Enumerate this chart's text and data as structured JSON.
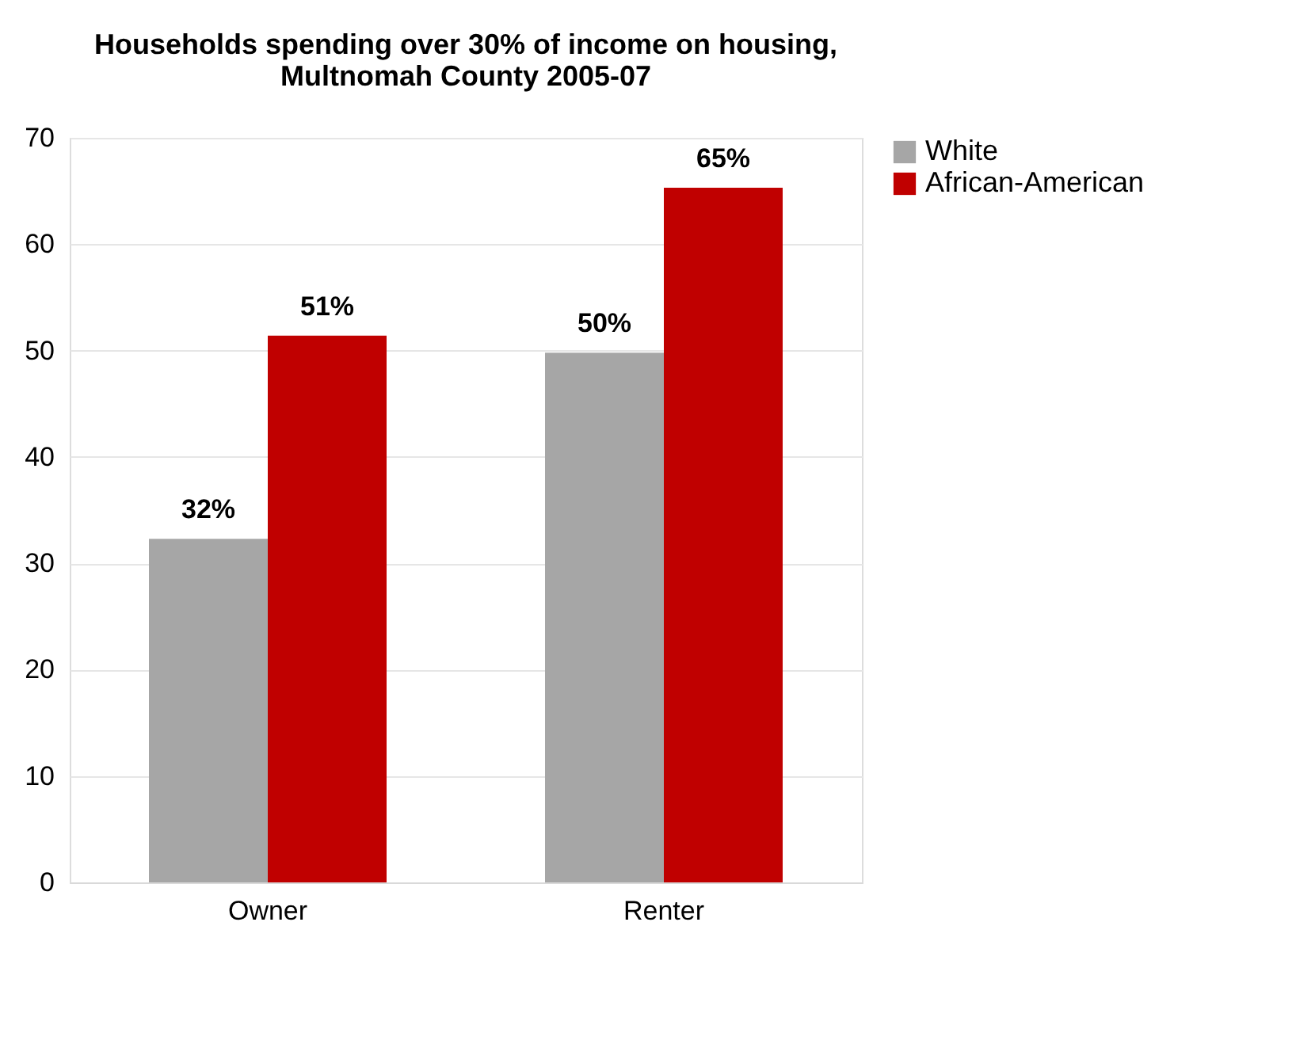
{
  "chart_data": {
    "type": "bar",
    "title": [
      "Households spending over 30% of income on housing,",
      "Multnomah County 2005-07"
    ],
    "categories": [
      "Owner",
      "Renter"
    ],
    "series": [
      {
        "name": "White",
        "color": "#a6a6a6",
        "values": [
          32.3,
          49.8
        ],
        "value_labels": [
          "32%",
          "50%"
        ]
      },
      {
        "name": "African-American",
        "color": "#c00000",
        "values": [
          51.4,
          65.3
        ],
        "value_labels": [
          "51%",
          "65%"
        ]
      }
    ],
    "ylim": [
      0,
      70
    ],
    "yticks": [
      0,
      10,
      20,
      30,
      40,
      50,
      60,
      70
    ],
    "grid": "y",
    "legend": "right"
  }
}
